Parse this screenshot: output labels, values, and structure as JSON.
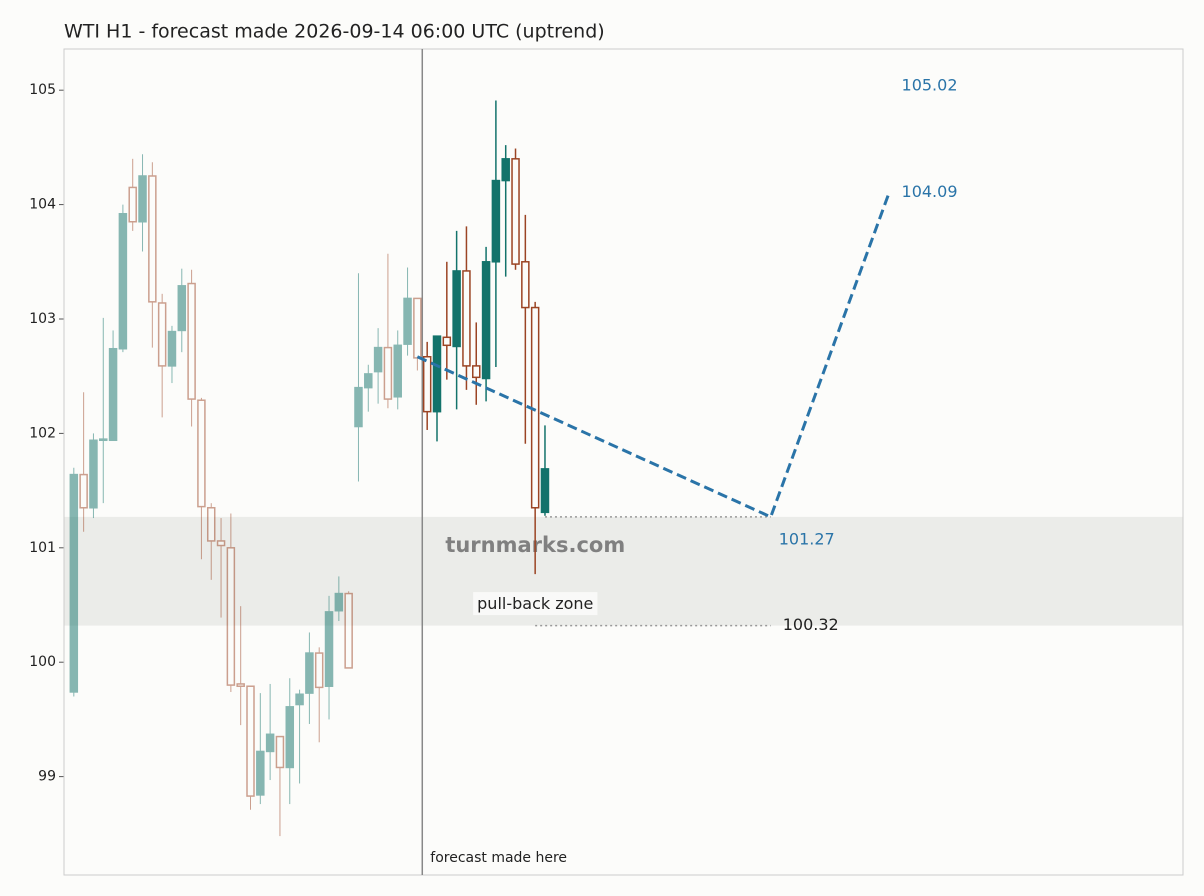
{
  "chart_data": {
    "type": "candlestick",
    "title": "WTI H1 - forecast made 2026-09-14 06:00 UTC (uptrend)",
    "xlim": [
      -1,
      113
    ],
    "ylim": [
      98.14,
      105.36
    ],
    "yticks": [
      99,
      100,
      101,
      102,
      103,
      104,
      105
    ],
    "colors": {
      "up": "#13736b",
      "down": "#9b4424",
      "forecast": "#2a74a8"
    },
    "forecast_start_index": 36,
    "open": [
      99.74,
      101.64,
      101.35,
      101.94,
      101.94,
      102.74,
      104.15,
      103.85,
      104.25,
      103.14,
      102.59,
      102.9,
      103.31,
      102.29,
      101.35,
      101.06,
      101.0,
      99.81,
      99.79,
      98.84,
      99.22,
      99.35,
      99.08,
      99.63,
      99.73,
      100.08,
      99.79,
      100.45,
      100.6,
      102.06,
      102.4,
      102.54,
      102.75,
      102.32,
      102.78,
      103.18,
      102.67,
      102.19,
      102.84,
      102.76,
      103.42,
      102.59,
      102.48,
      103.5,
      104.21,
      104.4,
      103.5,
      103.1,
      101.31
    ],
    "high": [
      101.7,
      102.36,
      102.0,
      103.01,
      102.9,
      104.0,
      104.4,
      104.44,
      104.37,
      103.22,
      102.94,
      103.44,
      103.43,
      102.31,
      101.39,
      101.26,
      101.3,
      100.49,
      99.79,
      99.73,
      99.81,
      99.35,
      99.86,
      99.76,
      100.26,
      100.13,
      100.58,
      100.75,
      100.62,
      103.4,
      102.6,
      102.92,
      103.57,
      102.9,
      103.45,
      103.18,
      102.8,
      102.85,
      103.5,
      103.77,
      103.81,
      102.97,
      103.63,
      104.91,
      104.52,
      104.49,
      103.91,
      103.15,
      102.07
    ],
    "low": [
      99.7,
      101.14,
      101.26,
      101.39,
      101.94,
      102.71,
      103.77,
      103.59,
      102.75,
      102.14,
      102.44,
      102.71,
      102.06,
      100.9,
      100.72,
      100.39,
      99.74,
      99.45,
      98.71,
      98.76,
      98.97,
      98.48,
      98.76,
      98.94,
      99.46,
      99.3,
      99.5,
      100.36,
      99.95,
      101.58,
      102.19,
      102.26,
      102.22,
      102.21,
      102.68,
      102.55,
      102.03,
      101.93,
      102.47,
      102.21,
      102.38,
      102.25,
      102.28,
      102.58,
      103.37,
      103.43,
      101.91,
      100.77,
      101.28
    ],
    "close": [
      101.64,
      101.35,
      101.94,
      101.95,
      102.74,
      103.92,
      103.85,
      104.25,
      103.15,
      102.59,
      102.89,
      103.29,
      102.3,
      101.36,
      101.06,
      101.02,
      99.8,
      99.79,
      98.83,
      99.22,
      99.37,
      99.08,
      99.61,
      99.72,
      100.08,
      99.78,
      100.44,
      100.6,
      99.95,
      102.4,
      102.52,
      102.75,
      102.3,
      102.77,
      103.18,
      102.66,
      102.19,
      102.85,
      102.77,
      103.42,
      102.59,
      102.49,
      103.5,
      104.21,
      104.4,
      103.48,
      103.1,
      101.35,
      101.69
    ],
    "forecast": {
      "x": [
        35,
        71,
        83
      ],
      "values": [
        102.67,
        101.27,
        104.09
      ]
    },
    "forecast_marker": {
      "x": 35.5,
      "label": "forecast made here"
    },
    "targets": [
      {
        "x": 83,
        "value": 105.02
      },
      {
        "x": 83,
        "value": 104.09
      },
      {
        "x": 71,
        "value": 101.27
      }
    ],
    "zone": {
      "label": "pull-back zone",
      "range": [
        100.32,
        101.27
      ],
      "label_value": 100.32,
      "end_x": 71
    },
    "watermark": "turnmarks.com"
  }
}
